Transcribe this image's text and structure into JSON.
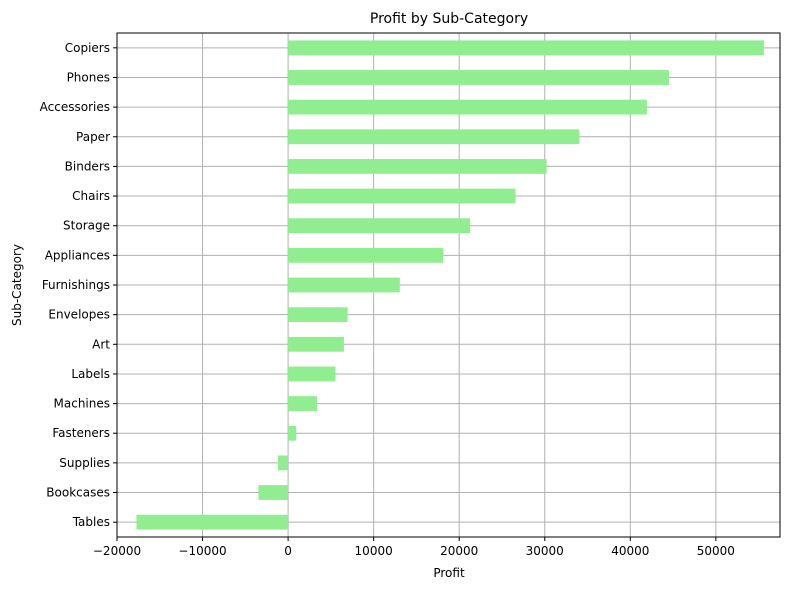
{
  "chart_data": {
    "type": "bar",
    "orientation": "horizontal",
    "title": "Profit by Sub-Category",
    "xlabel": "Profit",
    "ylabel": "Sub-Category",
    "categories": [
      "Copiers",
      "Phones",
      "Accessories",
      "Paper",
      "Binders",
      "Chairs",
      "Storage",
      "Appliances",
      "Furnishings",
      "Envelopes",
      "Art",
      "Labels",
      "Machines",
      "Fasteners",
      "Supplies",
      "Bookcases",
      "Tables"
    ],
    "values": [
      55618,
      44516,
      41937,
      34054,
      30222,
      26590,
      21279,
      18138,
      13059,
      6964,
      6528,
      5546,
      3385,
      950,
      -1189,
      -3473,
      -17725
    ],
    "xlim": [
      -20000,
      57500
    ],
    "xticks": [
      -20000,
      -10000,
      0,
      10000,
      20000,
      30000,
      40000,
      50000
    ],
    "xtick_labels": [
      "−20000",
      "−10000",
      "0",
      "10000",
      "20000",
      "30000",
      "40000",
      "50000"
    ],
    "grid": true,
    "bar_color": "#90ee90",
    "grid_color": "#b0b0b0"
  }
}
